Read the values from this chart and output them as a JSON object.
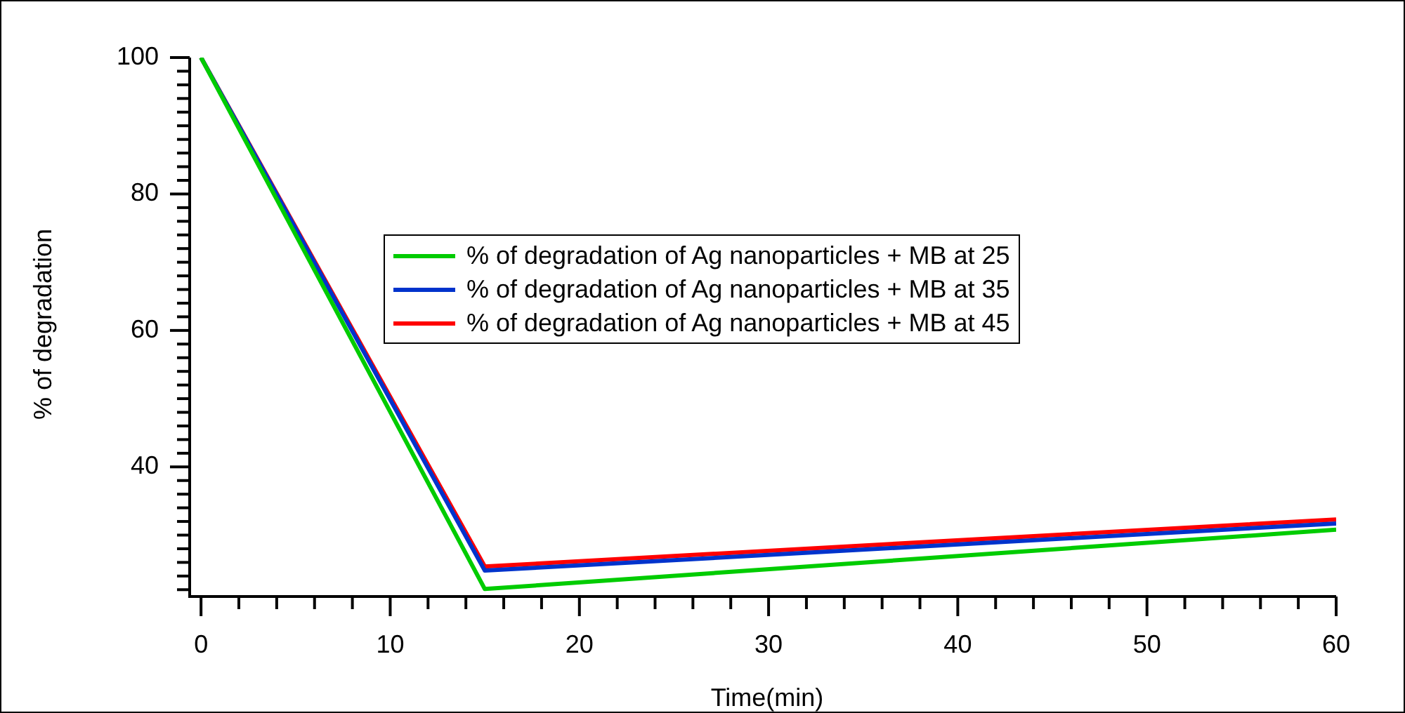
{
  "chart_data": {
    "type": "line",
    "xlabel": "Time(min)",
    "ylabel": "% of degradation",
    "x": [
      0,
      15,
      60
    ],
    "series": [
      {
        "name": "% of degradation of Ag nanoparticles + MB at 25",
        "color": "#00cc00",
        "values": [
          100,
          22.1,
          30.8
        ]
      },
      {
        "name": "% of degradation of Ag nanoparticles + MB at 35",
        "color": "#0033cc",
        "values": [
          100,
          24.8,
          31.7
        ]
      },
      {
        "name": "% of degradation of Ag nanoparticles + MB at 45",
        "color": "#ff0000",
        "values": [
          100,
          25.4,
          32.3
        ]
      }
    ],
    "xlim": [
      -0.6,
      60
    ],
    "ylim": [
      21,
      100
    ],
    "xticks": [
      0,
      {
        "value": 2,
        "label": null
      },
      {
        "value": 4,
        "label": null
      },
      {
        "value": 6,
        "label": null
      },
      {
        "value": 8,
        "label": null
      },
      10,
      {
        "value": 12,
        "label": null
      },
      {
        "value": 14,
        "label": null
      },
      {
        "value": 16,
        "label": null
      },
      {
        "value": 18,
        "label": null
      },
      20,
      {
        "value": 22,
        "label": null
      },
      {
        "value": 24,
        "label": null
      },
      {
        "value": 26,
        "label": null
      },
      {
        "value": 28,
        "label": null
      },
      30,
      {
        "value": 32,
        "label": null
      },
      {
        "value": 34,
        "label": null
      },
      {
        "value": 36,
        "label": null
      },
      {
        "value": 38,
        "label": null
      },
      40,
      {
        "value": 42,
        "label": null
      },
      {
        "value": 44,
        "label": null
      },
      {
        "value": 46,
        "label": null
      },
      {
        "value": 48,
        "label": null
      },
      50,
      {
        "value": 52,
        "label": null
      },
      {
        "value": 54,
        "label": null
      },
      {
        "value": 56,
        "label": null
      },
      {
        "value": 58,
        "label": null
      },
      60
    ],
    "yticks": [
      {
        "value": 22,
        "label": null
      },
      {
        "value": 24,
        "label": null
      },
      {
        "value": 26,
        "label": null
      },
      {
        "value": 28,
        "label": null
      },
      {
        "value": 30,
        "label": null
      },
      {
        "value": 32,
        "label": null
      },
      {
        "value": 34,
        "label": null
      },
      {
        "value": 36,
        "label": null
      },
      {
        "value": 38,
        "label": null
      },
      40,
      {
        "value": 42,
        "label": null
      },
      {
        "value": 44,
        "label": null
      },
      {
        "value": 46,
        "label": null
      },
      {
        "value": 48,
        "label": null
      },
      {
        "value": 50,
        "label": null
      },
      {
        "value": 52,
        "label": null
      },
      {
        "value": 54,
        "label": null
      },
      {
        "value": 56,
        "label": null
      },
      {
        "value": 58,
        "label": null
      },
      60,
      {
        "value": 62,
        "label": null
      },
      {
        "value": 64,
        "label": null
      },
      {
        "value": 66,
        "label": null
      },
      {
        "value": 68,
        "label": null
      },
      {
        "value": 70,
        "label": null
      },
      {
        "value": 72,
        "label": null
      },
      {
        "value": 74,
        "label": null
      },
      {
        "value": 76,
        "label": null
      },
      {
        "value": 78,
        "label": null
      },
      80,
      {
        "value": 82,
        "label": null
      },
      {
        "value": 84,
        "label": null
      },
      {
        "value": 86,
        "label": null
      },
      {
        "value": 88,
        "label": null
      },
      {
        "value": 90,
        "label": null
      },
      {
        "value": 92,
        "label": null
      },
      {
        "value": 94,
        "label": null
      },
      {
        "value": 96,
        "label": null
      },
      {
        "value": 98,
        "label": null
      },
      100
    ],
    "grid": false,
    "legend": "top",
    "marker": "none",
    "line_style": "solid"
  }
}
